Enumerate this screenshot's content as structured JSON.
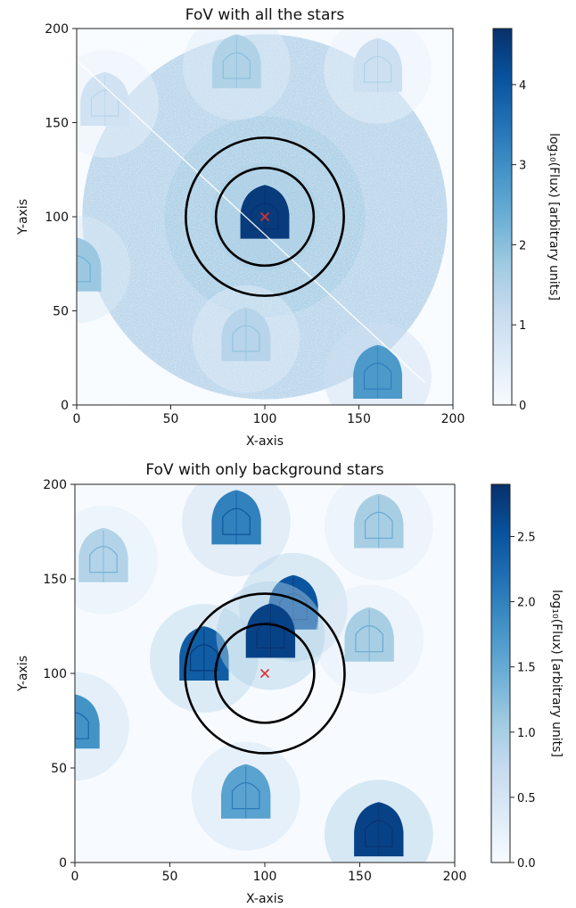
{
  "chart_data": [
    {
      "type": "heatmap",
      "title": "FoV with all the stars",
      "xlabel": "X-axis",
      "ylabel": "Y-axis",
      "xlim": [
        0,
        200
      ],
      "ylim": [
        0,
        200
      ],
      "xticks": [
        "0",
        "50",
        "100",
        "150",
        "200"
      ],
      "yticks": [
        "0",
        "50",
        "100",
        "150",
        "200"
      ],
      "colormap": "Blues",
      "colorbar": {
        "label": "log₁₀(Flux) [arbitrary units]",
        "range": [
          0,
          4.7
        ],
        "ticks": [
          "0",
          "1",
          "2",
          "3",
          "4"
        ],
        "tick_values": [
          0,
          1,
          2,
          3,
          4
        ]
      },
      "field_disk": {
        "center": [
          100,
          100
        ],
        "radius": 97,
        "level": 1.3
      },
      "background_stars": [
        {
          "x": 85,
          "y": 180,
          "level": 1.5
        },
        {
          "x": 160,
          "y": 178,
          "level": 1.0
        },
        {
          "x": 15,
          "y": 160,
          "level": 0.9
        },
        {
          "x": 0,
          "y": 72,
          "level": 1.8
        },
        {
          "x": 90,
          "y": 35,
          "level": 1.4
        },
        {
          "x": 160,
          "y": 15,
          "level": 2.8
        }
      ],
      "target_star": {
        "x": 100,
        "y": 100,
        "level": 4.5
      },
      "target_marker": {
        "x": 100,
        "y": 100,
        "symbol": "x",
        "color": "#e03030"
      },
      "apertures": [
        {
          "center": [
            100,
            100
          ],
          "radius": 26
        },
        {
          "center": [
            100,
            100
          ],
          "radius": 42
        }
      ],
      "streak": {
        "from": [
          0,
          183
        ],
        "to": [
          185,
          12
        ]
      }
    },
    {
      "type": "heatmap",
      "title": "FoV with only background stars",
      "xlabel": "X-axis",
      "ylabel": "Y-axis",
      "xlim": [
        0,
        200
      ],
      "ylim": [
        0,
        200
      ],
      "xticks": [
        "0",
        "50",
        "100",
        "150",
        "200"
      ],
      "yticks": [
        "0",
        "50",
        "100",
        "150",
        "200"
      ],
      "colormap": "Blues",
      "colorbar": {
        "label": "log₁₀(Flux) [arbitrary units]",
        "range": [
          0,
          2.9
        ],
        "ticks": [
          "0.0",
          "0.5",
          "1.0",
          "1.5",
          "2.0",
          "2.5"
        ],
        "tick_values": [
          0,
          0.5,
          1.0,
          1.5,
          2.0,
          2.5
        ]
      },
      "background_stars": [
        {
          "x": 85,
          "y": 180,
          "level": 2.0
        },
        {
          "x": 160,
          "y": 178,
          "level": 1.0
        },
        {
          "x": 15,
          "y": 160,
          "level": 0.9
        },
        {
          "x": 0,
          "y": 72,
          "level": 1.8
        },
        {
          "x": 90,
          "y": 35,
          "level": 1.6
        },
        {
          "x": 160,
          "y": 15,
          "level": 2.7
        },
        {
          "x": 115,
          "y": 135,
          "level": 2.5
        },
        {
          "x": 68,
          "y": 108,
          "level": 2.4
        },
        {
          "x": 155,
          "y": 118,
          "level": 1.0
        },
        {
          "x": 103,
          "y": 120,
          "level": 2.7
        }
      ],
      "target_marker": {
        "x": 100,
        "y": 100,
        "symbol": "x",
        "color": "#e03030"
      },
      "apertures": [
        {
          "center": [
            100,
            100
          ],
          "radius": 26
        },
        {
          "center": [
            100,
            100
          ],
          "radius": 42
        }
      ]
    }
  ]
}
